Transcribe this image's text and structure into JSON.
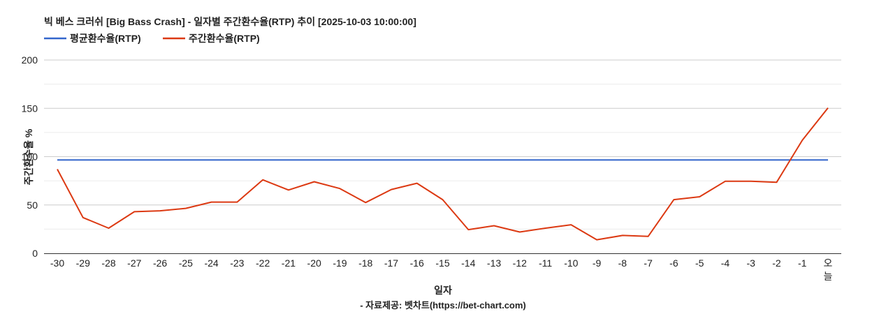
{
  "chart_data": {
    "type": "line",
    "title": "빅 베스 크러쉬 [Big Bass Crash] - 일자별 주간환수율(RTP) 추이 [2025-10-03 10:00:00]",
    "xlabel": "일자",
    "ylabel": "주간환수율 %",
    "source": "- 자료제공: 벳차트(https://bet-chart.com)",
    "ylim": [
      0,
      200
    ],
    "yticks": [
      "0",
      "50",
      "100",
      "150",
      "200"
    ],
    "legend_position": "top-left",
    "grid": true,
    "categories": [
      "-30",
      "-29",
      "-28",
      "-27",
      "-26",
      "-25",
      "-24",
      "-23",
      "-22",
      "-21",
      "-20",
      "-19",
      "-18",
      "-17",
      "-16",
      "-15",
      "-14",
      "-13",
      "-12",
      "-11",
      "-10",
      "-9",
      "-8",
      "-7",
      "-6",
      "-5",
      "-4",
      "-3",
      "-2",
      "-1",
      "오늘"
    ],
    "series": [
      {
        "name": "평균환수율(RTP)",
        "color": "#3366cc",
        "values": [
          96.5,
          96.5,
          96.5,
          96.5,
          96.5,
          96.5,
          96.5,
          96.5,
          96.5,
          96.5,
          96.5,
          96.5,
          96.5,
          96.5,
          96.5,
          96.5,
          96.5,
          96.5,
          96.5,
          96.5,
          96.5,
          96.5,
          96.5,
          96.5,
          96.5,
          96.5,
          96.5,
          96.5,
          96.5,
          96.5,
          96.5
        ]
      },
      {
        "name": "주간환수율(RTP)",
        "color": "#dc3912",
        "values": [
          87,
          37,
          26,
          43,
          44,
          46.5,
          53,
          53,
          76,
          65.5,
          74,
          67,
          52.5,
          66,
          72.5,
          55.5,
          24.5,
          28.5,
          22,
          26,
          29.5,
          14,
          18.5,
          17.5,
          55.5,
          58.5,
          74.5,
          74.5,
          73.5,
          117,
          150.5
        ]
      }
    ]
  }
}
